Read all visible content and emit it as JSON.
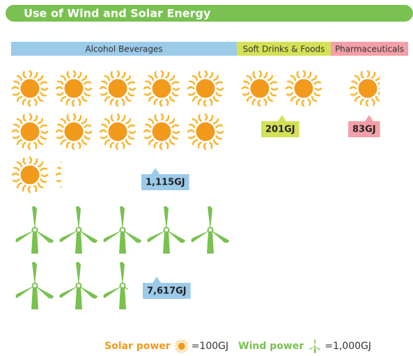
{
  "chart_data": {
    "type": "pictogram",
    "title": "Use of Wind and Solar Energy",
    "categories": [
      "Alcohol Beverages",
      "Soft Drinks & Foods",
      "Pharmaceuticals"
    ],
    "category_colors": [
      "#9ccbea",
      "#d4e157",
      "#f4a0a8"
    ],
    "series": [
      {
        "name": "Solar power",
        "color": "#f29a1c",
        "unit": 100,
        "unit_label": "=100GJ",
        "values": [
          1115,
          201,
          83
        ],
        "value_labels": [
          "1,115GJ",
          "201GJ",
          "83GJ"
        ]
      },
      {
        "name": "Wind power",
        "color": "#79c150",
        "unit": 1000,
        "unit_label": "=1,000GJ",
        "values": [
          7617,
          null,
          null
        ],
        "value_labels": [
          "7,617GJ",
          null,
          null
        ]
      }
    ]
  }
}
